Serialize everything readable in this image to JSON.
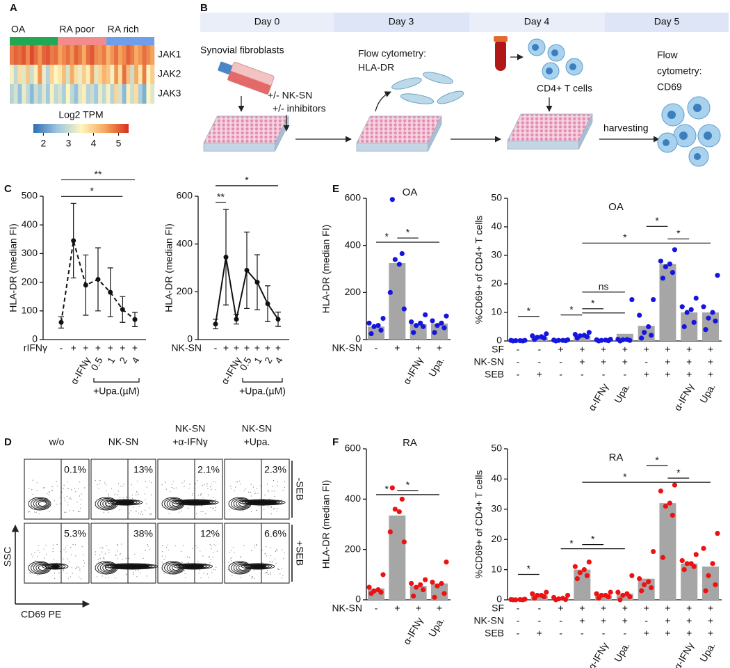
{
  "panel_labels": [
    "A",
    "B",
    "C",
    "D",
    "E",
    "F"
  ],
  "schematic": {
    "days": [
      "Day 0",
      "Day 3",
      "Day 4",
      "Day 5"
    ],
    "synovial": "Synovial fibroblasts",
    "nk_sn": "+/- NK-SN",
    "inhibitors": "+/- inhibitors",
    "flow_hla": [
      "Flow cytometry:",
      "HLA-DR"
    ],
    "t_cells": "CD4+ T cells",
    "harvesting": "harvesting",
    "flow_cd69": [
      "Flow",
      "cytometry:",
      "CD69"
    ]
  },
  "flow": {
    "columns": [
      [
        "w/o"
      ],
      [
        "NK-SN"
      ],
      [
        "NK-SN",
        "+α-IFNγ"
      ],
      [
        "NK-SN",
        "+Upa."
      ]
    ],
    "rows": [
      "-SEB",
      "+SEB"
    ],
    "percentages": [
      [
        "0.1%",
        "13%",
        "2.1%",
        "2.3%"
      ],
      [
        "5.3%",
        "38%",
        "12%",
        "6.6%"
      ]
    ],
    "y_axis": "SSC",
    "x_axis": "CD69 PE"
  },
  "chart_data": [
    {
      "type": "heatmap",
      "groups": [
        {
          "label": "OA",
          "count": 12,
          "color": "#22a853"
        },
        {
          "label": "RA poor",
          "count": 12,
          "color": "#f28b8b"
        },
        {
          "label": "RA rich",
          "count": 12,
          "color": "#6f9fe8"
        }
      ],
      "row_labels": [
        "JAK1",
        "JAK2",
        "JAK3"
      ],
      "matrix": [
        [
          4.8,
          5.0,
          4.9,
          5.1,
          4.7,
          5.2,
          4.9,
          4.6,
          5.0,
          5.1,
          4.8,
          4.9,
          4.5,
          4.7,
          4.9,
          4.6,
          5.0,
          4.8,
          4.4,
          4.9,
          5.1,
          4.7,
          4.6,
          4.8,
          4.3,
          4.6,
          4.9,
          4.5,
          4.7,
          5.0,
          4.8,
          4.4,
          4.6,
          4.9,
          4.7,
          4.5
        ],
        [
          3.4,
          2.9,
          3.8,
          3.2,
          4.1,
          3.0,
          3.6,
          4.6,
          3.3,
          2.8,
          3.9,
          3.5,
          3.7,
          4.2,
          3.1,
          4.4,
          3.8,
          3.3,
          4.0,
          3.6,
          4.5,
          3.2,
          3.9,
          4.3,
          4.1,
          3.4,
          4.6,
          3.8,
          4.9,
          4.2,
          3.0,
          4.4,
          3.7,
          4.8,
          3.5,
          4.0
        ],
        [
          2.8,
          3.1,
          2.5,
          3.3,
          2.9,
          2.4,
          3.0,
          2.7,
          3.2,
          2.6,
          3.4,
          2.9,
          3.1,
          2.7,
          3.5,
          2.9,
          2.5,
          3.2,
          3.6,
          2.8,
          3.0,
          2.6,
          3.3,
          2.9,
          3.4,
          2.8,
          3.9,
          3.1,
          2.4,
          3.6,
          3.0,
          3.8,
          2.7,
          2.3,
          3.5,
          3.2
        ]
      ],
      "colormap": [
        "#2f6db3",
        "#9dc6e0",
        "#fdf6c0",
        "#f6a85f",
        "#d7301f"
      ],
      "colorbar_title": "Log2 TPM",
      "zlim": [
        1.6,
        5.4
      ],
      "zticks": [
        2,
        3,
        4,
        5
      ]
    },
    {
      "type": "line",
      "y_label": "HLA-DR (median FI)",
      "ylim": [
        0,
        500
      ],
      "yticks": [
        0,
        100,
        200,
        300,
        400,
        500
      ],
      "rows": [
        {
          "label": "rIFNγ",
          "values": [
            "-",
            "+",
            "+",
            "+",
            "+",
            "+",
            "+"
          ]
        }
      ],
      "sub_labels": [
        null,
        null,
        "α-IFNγ",
        "0.5",
        "1",
        "2",
        "4"
      ],
      "bracket": {
        "label": "+Upa.(µM)",
        "from": 3,
        "to": 6
      },
      "values": [
        60,
        345,
        190,
        210,
        165,
        105,
        70
      ],
      "errors": [
        20,
        130,
        105,
        110,
        85,
        45,
        25
      ],
      "color": "#111111",
      "dashed": true,
      "significance": [
        {
          "label": "*",
          "spans": [
            [
              0,
              5
            ]
          ]
        },
        {
          "label": "**",
          "spans": [
            [
              0,
              6
            ]
          ]
        }
      ]
    },
    {
      "type": "line",
      "y_label": "HLA-DR (median FI)",
      "ylim": [
        0,
        600
      ],
      "yticks": [
        0,
        200,
        400,
        600
      ],
      "rows": [
        {
          "label": "NK-SN",
          "values": [
            "-",
            "+",
            "+",
            "+",
            "+",
            "+",
            "+"
          ]
        }
      ],
      "sub_labels": [
        null,
        null,
        "α-IFNγ",
        "0.5",
        "1",
        "2",
        "4"
      ],
      "bracket": {
        "label": "+Upa.(µM)",
        "from": 3,
        "to": 6
      },
      "values": [
        65,
        345,
        85,
        290,
        240,
        150,
        85
      ],
      "errors": [
        20,
        200,
        20,
        160,
        115,
        75,
        30
      ],
      "color": "#111111",
      "dashed": false,
      "significance": [
        {
          "label": "**",
          "spans": [
            [
              0,
              1
            ]
          ]
        },
        {
          "label": "*",
          "spans": [
            [
              0,
              6
            ]
          ]
        }
      ]
    },
    {
      "type": "bar",
      "title": "OA",
      "y_label": "HLA-DR (median FI)",
      "ylim": [
        0,
        600
      ],
      "yticks": [
        0,
        200,
        400,
        600
      ],
      "rows": [
        {
          "label": "NK-SN",
          "values": [
            "-",
            "+",
            "+",
            "+"
          ]
        }
      ],
      "sub_labels": [
        null,
        null,
        "α-IFNγ",
        "Upa."
      ],
      "values": [
        55,
        325,
        65,
        68
      ],
      "points": [
        [
          25,
          40,
          55,
          60,
          70,
          90
        ],
        [
          595,
          365,
          340,
          320,
          200,
          130
        ],
        [
          30,
          55,
          60,
          70,
          75,
          105
        ],
        [
          30,
          50,
          60,
          70,
          80,
          100
        ]
      ],
      "color": "#1515e0",
      "bar_color": "#a6a6a6",
      "significance": [
        {
          "label": "*",
          "spans": [
            [
              0,
              1
            ]
          ]
        },
        {
          "label": "*",
          "spans": [
            [
              1,
              2
            ],
            [
              1,
              3
            ]
          ]
        }
      ]
    },
    {
      "type": "bar",
      "title": "OA",
      "y_label": "%CD69+ of CD4+ T cells",
      "ylim": [
        0,
        50
      ],
      "yticks": [
        0,
        10,
        20,
        30,
        40,
        50
      ],
      "rows": [
        {
          "label": "SF",
          "values": [
            "-",
            "-",
            "+",
            "+",
            "+",
            "+",
            "+",
            "+",
            "+",
            "+"
          ]
        },
        {
          "label": "NK-SN",
          "values": [
            "-",
            "-",
            "-",
            "+",
            "+",
            "+",
            "-",
            "+",
            "+",
            "+"
          ]
        },
        {
          "label": "SEB",
          "values": [
            "-",
            "+",
            "-",
            "-",
            "-",
            "-",
            "+",
            "+",
            "+",
            "+"
          ]
        }
      ],
      "sub_labels": [
        null,
        null,
        null,
        null,
        "α-IFNγ",
        "Upa.",
        null,
        null,
        "α-IFNγ",
        "Upa."
      ],
      "values": [
        0.1,
        1.3,
        0.2,
        1.8,
        0.3,
        2.5,
        5.3,
        27,
        10,
        10
      ],
      "points": [
        [
          0,
          0,
          0.1,
          0.1,
          0.2,
          0.2
        ],
        [
          0.5,
          1,
          1.3,
          1.5,
          1.8,
          2.5
        ],
        [
          0,
          0.1,
          0.2,
          0.2,
          0.3,
          0.4
        ],
        [
          1,
          1.5,
          1.8,
          2,
          2.3,
          3
        ],
        [
          0,
          0.1,
          0.2,
          0.3,
          0.4,
          0.6
        ],
        [
          0,
          0.2,
          0.4,
          0.5,
          0.6,
          14.5
        ],
        [
          1,
          2,
          3,
          5,
          9,
          14.5
        ],
        [
          22,
          24,
          26,
          27,
          28,
          32
        ],
        [
          5,
          6.5,
          10,
          11,
          12,
          15
        ],
        [
          4,
          7,
          8,
          10,
          12,
          23
        ]
      ],
      "color": "#1515e0",
      "bar_color": "#a6a6a6",
      "significance": [
        {
          "label": "*",
          "spans": [
            [
              0,
              1
            ]
          ]
        },
        {
          "label": "*",
          "spans": [
            [
              2,
              3
            ]
          ]
        },
        {
          "label": "*",
          "spans": [
            [
              3,
              4
            ],
            [
              3,
              5
            ]
          ]
        },
        {
          "label": "ns",
          "spans": [
            [
              3,
              5
            ]
          ]
        },
        {
          "label": "*",
          "spans": [
            [
              3,
              7
            ]
          ]
        },
        {
          "label": "*",
          "spans": [
            [
              7,
              8
            ],
            [
              7,
              9
            ]
          ]
        },
        {
          "label": "*",
          "spans": [
            [
              6,
              7
            ]
          ]
        }
      ]
    },
    {
      "type": "bar",
      "title": "RA",
      "y_label": "HLA-DR (median FI)",
      "ylim": [
        0,
        600
      ],
      "yticks": [
        0,
        200,
        400,
        600
      ],
      "rows": [
        {
          "label": "NK-SN",
          "values": [
            "-",
            "+",
            "+",
            "+"
          ]
        }
      ],
      "sub_labels": [
        null,
        null,
        "α-IFNγ",
        "Upa."
      ],
      "values": [
        45,
        335,
        55,
        65
      ],
      "points": [
        [
          25,
          30,
          35,
          40,
          50,
          100
        ],
        [
          445,
          400,
          360,
          350,
          270,
          230
        ],
        [
          15,
          40,
          50,
          60,
          65,
          80
        ],
        [
          10,
          25,
          55,
          65,
          70,
          150
        ]
      ],
      "color": "#ee1111",
      "bar_color": "#a6a6a6",
      "significance": [
        {
          "label": "*",
          "spans": [
            [
              0,
              1
            ]
          ]
        },
        {
          "label": "*",
          "spans": [
            [
              1,
              2
            ],
            [
              1,
              3
            ]
          ]
        }
      ]
    },
    {
      "type": "bar",
      "title": "RA",
      "y_label": "%CD69+ of CD4+ T cells",
      "ylim": [
        0,
        50
      ],
      "yticks": [
        0,
        10,
        20,
        30,
        40,
        50
      ],
      "rows": [
        {
          "label": "SF",
          "values": [
            "-",
            "-",
            "+",
            "+",
            "+",
            "+",
            "+",
            "+",
            "+",
            "+"
          ]
        },
        {
          "label": "NK-SN",
          "values": [
            "-",
            "-",
            "-",
            "+",
            "+",
            "+",
            "-",
            "+",
            "+",
            "+"
          ]
        },
        {
          "label": "SEB",
          "values": [
            "-",
            "+",
            "-",
            "-",
            "-",
            "-",
            "+",
            "+",
            "+",
            "+"
          ]
        }
      ],
      "sub_labels": [
        null,
        null,
        null,
        null,
        "α-IFNγ",
        "Upa.",
        null,
        null,
        "α-IFNγ",
        "Upa."
      ],
      "values": [
        0.1,
        1.5,
        0.5,
        10,
        1.5,
        2,
        7,
        32,
        12,
        11
      ],
      "points": [
        [
          0,
          0,
          0,
          0.1,
          0.1,
          0.2
        ],
        [
          0.5,
          1,
          1.5,
          1.5,
          2,
          2.5
        ],
        [
          0,
          0.1,
          0.3,
          0.5,
          0.8,
          1.5
        ],
        [
          7,
          8,
          9,
          10,
          11,
          12.5
        ],
        [
          0.5,
          1,
          1.5,
          1.5,
          2,
          2.5
        ],
        [
          0,
          1,
          1.5,
          2,
          2.5,
          8
        ],
        [
          3,
          4,
          5,
          6,
          7,
          16
        ],
        [
          14,
          28,
          31,
          32,
          36,
          38
        ],
        [
          10,
          11,
          12,
          12,
          13,
          15
        ],
        [
          3,
          5,
          8,
          12,
          17,
          22
        ]
      ],
      "color": "#ee1111",
      "bar_color": "#a6a6a6",
      "significance": [
        {
          "label": "*",
          "spans": [
            [
              0,
              1
            ]
          ]
        },
        {
          "label": "*",
          "spans": [
            [
              2,
              3
            ]
          ]
        },
        {
          "label": "*",
          "spans": [
            [
              3,
              4
            ],
            [
              3,
              5
            ]
          ]
        },
        {
          "label": "*",
          "spans": [
            [
              3,
              7
            ]
          ]
        },
        {
          "label": "*",
          "spans": [
            [
              7,
              8
            ],
            [
              7,
              9
            ]
          ]
        },
        {
          "label": "*",
          "spans": [
            [
              6,
              7
            ]
          ]
        }
      ]
    }
  ]
}
